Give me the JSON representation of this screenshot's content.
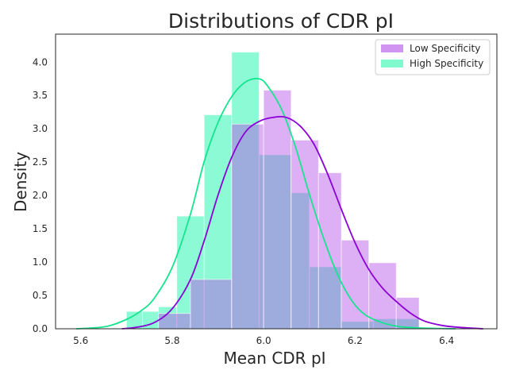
{
  "chart_data": {
    "type": "histogram",
    "title": "Distributions of CDR pI",
    "xlabel": "Mean CDR pI",
    "ylabel": "Density",
    "xlim": [
      5.545,
      6.51
    ],
    "ylim": [
      0,
      4.42
    ],
    "x_ticks": [
      "5.6",
      "5.8",
      "6.0",
      "6.2",
      "6.4"
    ],
    "y_ticks": [
      "0.0",
      "0.5",
      "1.0",
      "1.5",
      "2.0",
      "2.5",
      "3.0",
      "3.5",
      "4.0"
    ],
    "grid": false,
    "legend_position": "top-right",
    "series": [
      {
        "name": "High Specificity",
        "color": "#00f5a0",
        "kde_color": "#14e58e",
        "bins": [
          {
            "x0": 5.7,
            "x1": 5.735,
            "density": 0.26
          },
          {
            "x0": 5.735,
            "x1": 5.77,
            "density": 0.26
          },
          {
            "x0": 5.77,
            "x1": 5.81,
            "density": 0.33
          },
          {
            "x0": 5.81,
            "x1": 5.87,
            "density": 1.69
          },
          {
            "x0": 5.87,
            "x1": 5.93,
            "density": 3.21
          },
          {
            "x0": 5.93,
            "x1": 5.99,
            "density": 4.15
          },
          {
            "x0": 5.99,
            "x1": 6.06,
            "density": 2.61
          },
          {
            "x0": 6.06,
            "x1": 6.1,
            "density": 2.04
          },
          {
            "x0": 6.1,
            "x1": 6.17,
            "density": 0.93
          },
          {
            "x0": 6.17,
            "x1": 6.24,
            "density": 0.11
          },
          {
            "x0": 6.24,
            "x1": 6.34,
            "density": 0.15
          }
        ],
        "kde": [
          [
            5.59,
            0.0
          ],
          [
            5.62,
            0.01
          ],
          [
            5.66,
            0.04
          ],
          [
            5.7,
            0.14
          ],
          [
            5.73,
            0.26
          ],
          [
            5.76,
            0.45
          ],
          [
            5.8,
            0.92
          ],
          [
            5.84,
            1.72
          ],
          [
            5.87,
            2.51
          ],
          [
            5.9,
            3.09
          ],
          [
            5.93,
            3.48
          ],
          [
            5.96,
            3.7
          ],
          [
            5.99,
            3.75
          ],
          [
            6.01,
            3.63
          ],
          [
            6.04,
            3.28
          ],
          [
            6.07,
            2.72
          ],
          [
            6.1,
            2.02
          ],
          [
            6.13,
            1.38
          ],
          [
            6.16,
            0.84
          ],
          [
            6.19,
            0.45
          ],
          [
            6.22,
            0.22
          ],
          [
            6.26,
            0.09
          ],
          [
            6.3,
            0.03
          ],
          [
            6.35,
            0.01
          ],
          [
            6.42,
            0.0
          ]
        ]
      },
      {
        "name": "Low Specificity",
        "color": "#b44de8",
        "kde_color": "#8b00d6",
        "bins": [
          {
            "x0": 5.77,
            "x1": 5.84,
            "density": 0.23
          },
          {
            "x0": 5.84,
            "x1": 5.93,
            "density": 0.74
          },
          {
            "x0": 5.93,
            "x1": 6.0,
            "density": 3.07
          },
          {
            "x0": 6.0,
            "x1": 6.06,
            "density": 3.58
          },
          {
            "x0": 6.06,
            "x1": 6.12,
            "density": 2.83
          },
          {
            "x0": 6.12,
            "x1": 6.17,
            "density": 2.34
          },
          {
            "x0": 6.17,
            "x1": 6.23,
            "density": 1.33
          },
          {
            "x0": 6.23,
            "x1": 6.29,
            "density": 0.99
          },
          {
            "x0": 6.29,
            "x1": 6.34,
            "density": 0.47
          }
        ],
        "kde": [
          [
            5.69,
            0.0
          ],
          [
            5.72,
            0.02
          ],
          [
            5.76,
            0.09
          ],
          [
            5.8,
            0.3
          ],
          [
            5.84,
            0.74
          ],
          [
            5.87,
            1.32
          ],
          [
            5.9,
            2.0
          ],
          [
            5.93,
            2.57
          ],
          [
            5.96,
            2.95
          ],
          [
            5.99,
            3.11
          ],
          [
            6.02,
            3.17
          ],
          [
            6.05,
            3.17
          ],
          [
            6.08,
            3.04
          ],
          [
            6.11,
            2.77
          ],
          [
            6.14,
            2.32
          ],
          [
            6.17,
            1.79
          ],
          [
            6.2,
            1.29
          ],
          [
            6.23,
            0.89
          ],
          [
            6.26,
            0.61
          ],
          [
            6.29,
            0.41
          ],
          [
            6.32,
            0.24
          ],
          [
            6.35,
            0.12
          ],
          [
            6.39,
            0.05
          ],
          [
            6.43,
            0.02
          ],
          [
            6.48,
            0.0
          ]
        ]
      }
    ]
  }
}
